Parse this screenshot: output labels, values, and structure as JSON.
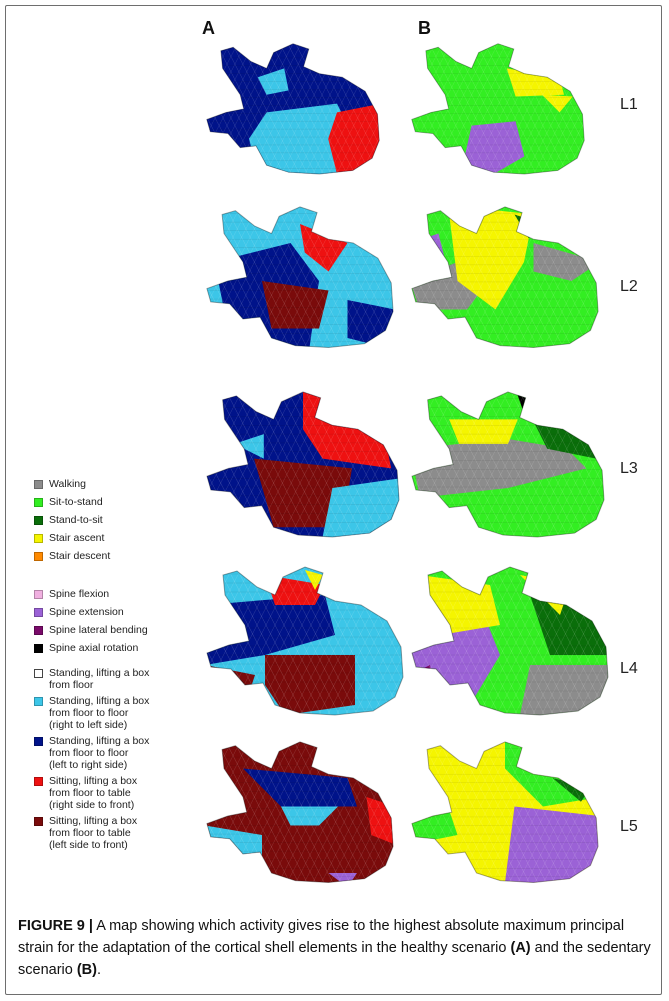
{
  "panels": {
    "a": "A",
    "b": "B"
  },
  "levels": [
    "L1",
    "L2",
    "L3",
    "L4",
    "L5"
  ],
  "legend": [
    {
      "label": "Walking",
      "color": "#8c8c8c"
    },
    {
      "label": "Sit-to-stand",
      "color": "#33ee22"
    },
    {
      "label": "Stand-to-sit",
      "color": "#0a6e0a"
    },
    {
      "label": "Stair ascent",
      "color": "#f5f500"
    },
    {
      "label": "Stair descent",
      "color": "#ff8a00"
    },
    {
      "label": "Spine flexion",
      "color": "#f0b0e0"
    },
    {
      "label": "Spine extension",
      "color": "#9b62d6"
    },
    {
      "label": "Spine lateral bending",
      "color": "#7a0a6a"
    },
    {
      "label": "Spine axial rotation",
      "color": "#000000"
    },
    {
      "label": "Standing, lifting a box\nfrom floor",
      "color": "#ffffff"
    },
    {
      "label": "Standing, lifting a box\nfrom floor to floor\n(right to left side)",
      "color": "#3cc6e8"
    },
    {
      "label": "Standing, lifting a box\nfrom floor to floor\n(left to right side)",
      "color": "#00138a"
    },
    {
      "label": "Sitting, lifting a box\nfrom floor to table\n(right side to front)",
      "color": "#ee1111"
    },
    {
      "label": "Sitting, lifting a box\nfrom floor to table\n(left side to front)",
      "color": "#7a0b0b"
    }
  ],
  "caption": {
    "label": "FIGURE 9 |",
    "text_1": " A map showing which activity gives rise to the highest absolute maximum principal strain for the adaptation of the cortical shell elements in the healthy scenario ",
    "ref_a": "(A)",
    "text_2": " and the sedentary scenario ",
    "ref_b": "(B)",
    "text_3": "."
  }
}
